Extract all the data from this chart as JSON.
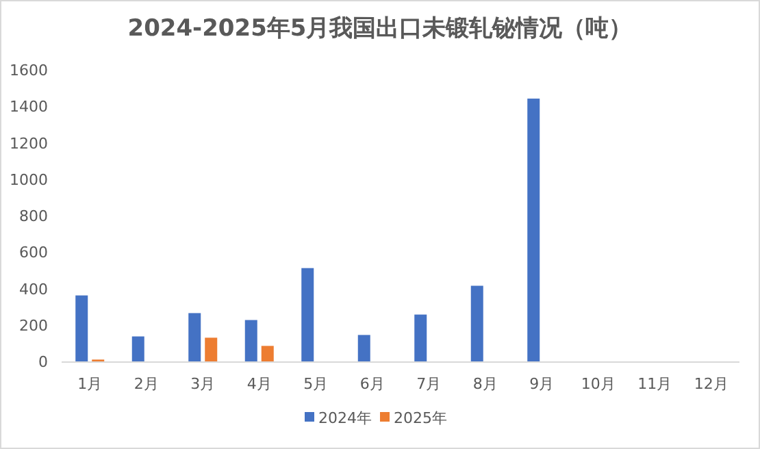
{
  "chart_data": {
    "type": "bar",
    "title": "2024-2025年5月我国出口未锻轧铋情况（吨）",
    "categories": [
      "1月",
      "2月",
      "3月",
      "4月",
      "5月",
      "6月",
      "7月",
      "8月",
      "9月",
      "10月",
      "11月",
      "12月"
    ],
    "series": [
      {
        "name": "2024年",
        "color": "#4472c4",
        "values": [
          362,
          137,
          265,
          227,
          512,
          145,
          257,
          415,
          1442,
          null,
          null,
          null
        ]
      },
      {
        "name": "2025年",
        "color": "#ed7d31",
        "values": [
          10,
          null,
          130,
          85,
          null,
          null,
          null,
          null,
          null,
          null,
          null,
          null
        ]
      }
    ],
    "ylim": [
      0,
      1600
    ],
    "yticks": [
      0,
      200,
      400,
      600,
      800,
      1000,
      1200,
      1400,
      1600
    ],
    "grid": false,
    "legend": "bottom"
  }
}
